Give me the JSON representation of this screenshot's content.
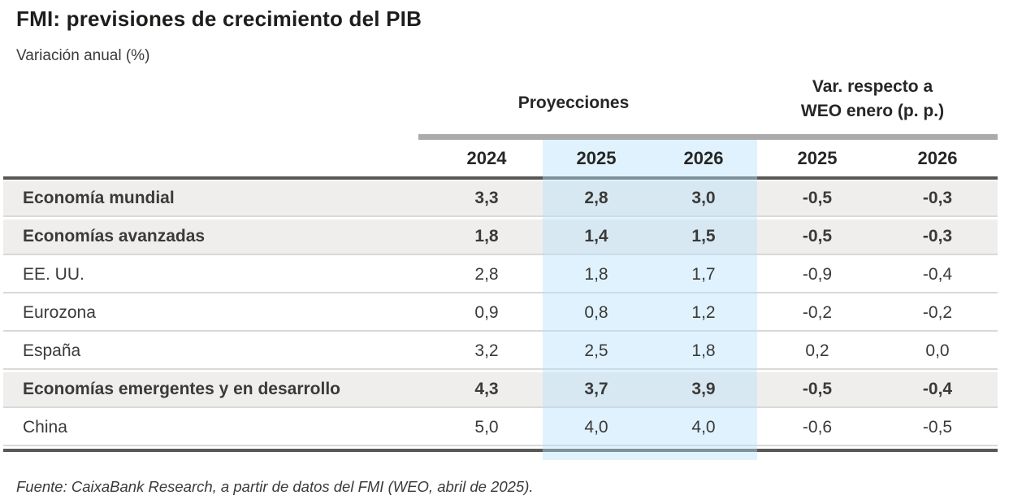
{
  "chart_data": {
    "type": "table",
    "title": "FMI: previsiones de crecimiento del PIB",
    "subtitle": "Variación anual (%)",
    "column_groups": [
      {
        "label": "Proyecciones",
        "span": [
          "2024",
          "2025",
          "2026"
        ]
      },
      {
        "label": "Var. respecto a WEO enero (p. p.)",
        "label_line1": "Var. respecto a",
        "label_line2": "WEO enero (p. p.)",
        "span": [
          "2025",
          "2026"
        ]
      }
    ],
    "columns": [
      "2024",
      "2025",
      "2026",
      "2025",
      "2026"
    ],
    "highlighted_columns": [
      "2025",
      "2026"
    ],
    "rows": [
      {
        "label": "Economía mundial",
        "bold": true,
        "values": [
          "3,3",
          "2,8",
          "3,0",
          "-0,5",
          "-0,3"
        ]
      },
      {
        "label": "Economías avanzadas",
        "bold": true,
        "values": [
          "1,8",
          "1,4",
          "1,5",
          "-0,5",
          "-0,3"
        ]
      },
      {
        "label": "EE. UU.",
        "bold": false,
        "values": [
          "2,8",
          "1,8",
          "1,7",
          "-0,9",
          "-0,4"
        ]
      },
      {
        "label": "Eurozona",
        "bold": false,
        "values": [
          "0,9",
          "0,8",
          "1,2",
          "-0,2",
          "-0,2"
        ]
      },
      {
        "label": "España",
        "bold": false,
        "values": [
          "3,2",
          "2,5",
          "1,8",
          "0,2",
          "0,0"
        ]
      },
      {
        "label": "Economías emergentes y en desarrollo",
        "bold": true,
        "values": [
          "4,3",
          "3,7",
          "3,9",
          "-0,5",
          "-0,4"
        ]
      },
      {
        "label": "China",
        "bold": false,
        "values": [
          "5,0",
          "4,0",
          "4,0",
          "-0,6",
          "-0,5"
        ]
      }
    ],
    "source": "Fuente: CaixaBank Research, a partir de datos del FMI (WEO, abril de 2025)."
  },
  "colors": {
    "text_dark": "#3a3a39",
    "title_dark": "#1d1d1b",
    "row_shade": "#efeeed",
    "bar_gray": "#ababab",
    "rule_dark": "#585857",
    "separator": "#d9d9d8",
    "highlight_rgba": "rgba(180,225,250,0.42)"
  }
}
